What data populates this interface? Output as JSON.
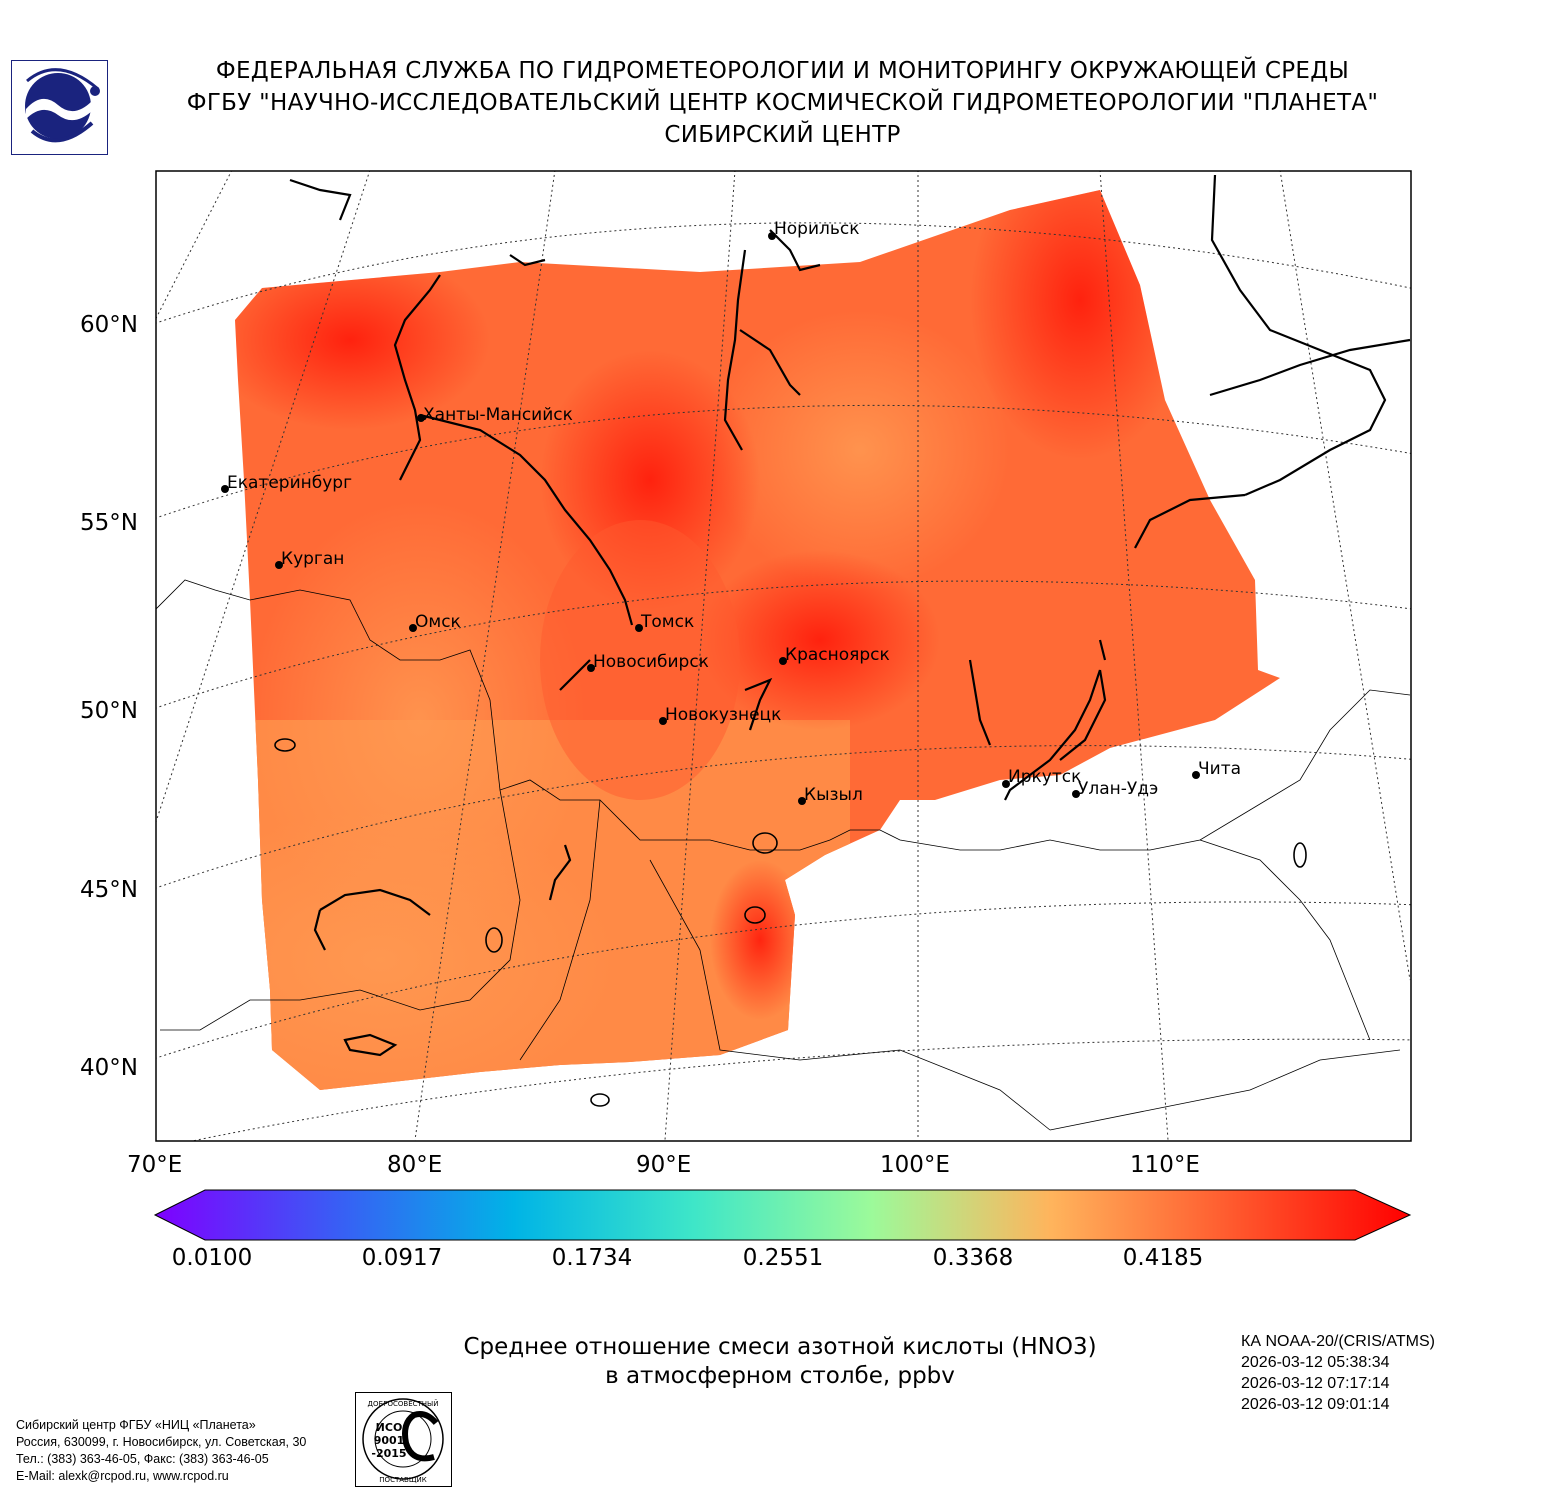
{
  "header": {
    "line1": "ФЕДЕРАЛЬНАЯ СЛУЖБА ПО ГИДРОМЕТЕОРОЛОГИИ И МОНИТОРИНГУ ОКРУЖАЮЩЕЙ СРЕДЫ",
    "line2": "ФГБУ \"НАУЧНО-ИССЛЕДОВАТЕЛЬСКИЙ ЦЕНТР КОСМИЧЕСКОЙ ГИДРОМЕТЕОРОЛОГИИ \"ПЛАНЕТА\"",
    "line3": "СИБИРСКИЙ ЦЕНТР"
  },
  "logo": {
    "icon": "roshydromet-logo-icon",
    "color": "#1a237e"
  },
  "map": {
    "latitude_labels": [
      "60°N",
      "55°N",
      "50°N",
      "45°N",
      "40°N"
    ],
    "longitude_labels": [
      "70°E",
      "80°E",
      "90°E",
      "100°E",
      "110°E"
    ],
    "cities": [
      {
        "name": "Норильск"
      },
      {
        "name": "Ханты-Мансийск"
      },
      {
        "name": "Екатеринбург"
      },
      {
        "name": "Курган"
      },
      {
        "name": "Омск"
      },
      {
        "name": "Томск"
      },
      {
        "name": "Новосибирск"
      },
      {
        "name": "Красноярск"
      },
      {
        "name": "Новокузнецк"
      },
      {
        "name": "Иркутск"
      },
      {
        "name": "Улан-Удэ"
      },
      {
        "name": "Чита"
      },
      {
        "name": "Кызыл"
      }
    ]
  },
  "colorbar": {
    "ticks": [
      "0.0100",
      "0.0917",
      "0.1734",
      "0.2551",
      "0.3368",
      "0.4185"
    ],
    "colors": [
      "#7f00ff",
      "#3a5cf5",
      "#00b4e6",
      "#3ee6c8",
      "#9cfa9a",
      "#ffb45c",
      "#ff5a2e",
      "#ff0000"
    ]
  },
  "product": {
    "title_line1": "Среднее отношение смеси азотной кислоты (HNO3)",
    "title_line2": "в атмосферном столбе, ppbv"
  },
  "satellite": {
    "name": "КА NOAA-20/(CRIS/ATMS)",
    "passes": [
      "2026-03-12 05:38:34",
      "2026-03-12 07:17:14",
      "2026-03-12 09:01:14"
    ]
  },
  "contacts": {
    "line1": "Сибирский центр ФГБУ «НИЦ «Планета»",
    "line2": "Россия, 630099, г. Новосибирск, ул. Советская, 30",
    "line3": "Тел.: (383) 363-46-05, Факс: (383) 363-46-05",
    "line4": "E-Mail: alexk@rcpod.ru, www.rcpod.ru"
  },
  "certificate": {
    "top_text": "ДОБРОСОВЕСТНЫЙ",
    "iso": "ИСО",
    "number": "9001",
    "year": "-2015",
    "bottom_text": "ПОСТАВЩИК"
  }
}
